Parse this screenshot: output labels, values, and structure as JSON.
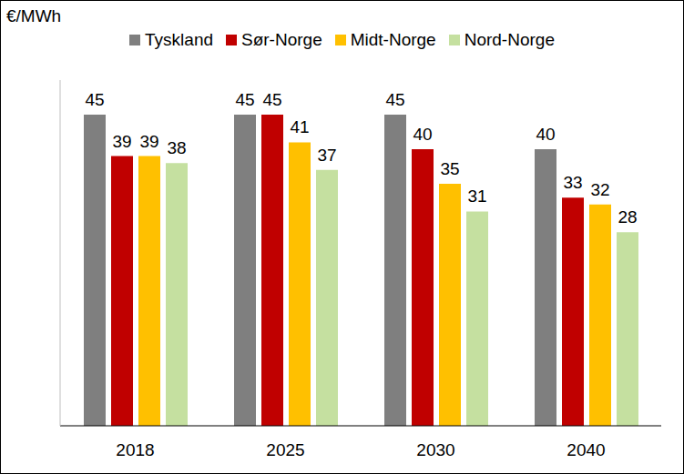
{
  "chart_data": {
    "type": "bar",
    "ylabel": "€/MWh",
    "categories": [
      "2018",
      "2025",
      "2030",
      "2040"
    ],
    "series": [
      {
        "name": "Tyskland",
        "color": "#7f7f7f",
        "values": [
          45,
          45,
          45,
          40
        ]
      },
      {
        "name": "Sør-Norge",
        "color": "#c00000",
        "values": [
          39,
          45,
          40,
          33
        ]
      },
      {
        "name": "Midt-Norge",
        "color": "#ffc000",
        "values": [
          39,
          41,
          35,
          32
        ]
      },
      {
        "name": "Nord-Norge",
        "color": "#c5e0a0",
        "values": [
          38,
          37,
          31,
          28
        ]
      }
    ],
    "ylim": [
      0,
      50
    ],
    "legend": "top",
    "data_labels": true,
    "tick_labels": "x",
    "grid": false
  }
}
